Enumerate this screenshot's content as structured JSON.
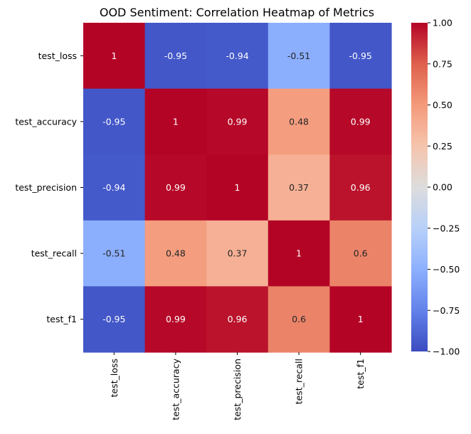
{
  "chart_data": {
    "type": "heatmap",
    "title": "OOD Sentiment: Correlation Heatmap of Metrics",
    "rows": [
      "test_loss",
      "test_accuracy",
      "test_precision",
      "test_recall",
      "test_f1"
    ],
    "columns": [
      "test_loss",
      "test_accuracy",
      "test_precision",
      "test_recall",
      "test_f1"
    ],
    "values": [
      [
        1,
        -0.95,
        -0.94,
        -0.51,
        -0.95
      ],
      [
        -0.95,
        1,
        0.99,
        0.48,
        0.99
      ],
      [
        -0.94,
        0.99,
        1,
        0.37,
        0.96
      ],
      [
        -0.51,
        0.48,
        0.37,
        1,
        0.6
      ],
      [
        -0.95,
        0.99,
        0.96,
        0.6,
        1
      ]
    ],
    "cell_labels": [
      [
        "1",
        "-0.95",
        "-0.94",
        "-0.51",
        "-0.95"
      ],
      [
        "-0.95",
        "1",
        "0.99",
        "0.48",
        "0.99"
      ],
      [
        "-0.94",
        "0.99",
        "1",
        "0.37",
        "0.96"
      ],
      [
        "-0.51",
        "0.48",
        "0.37",
        "1",
        "0.6"
      ],
      [
        "-0.95",
        "0.99",
        "0.96",
        "0.6",
        "1"
      ]
    ],
    "colormap": "coolwarm",
    "vmin": -1,
    "vmax": 1,
    "colorbar_ticks": [
      1.0,
      0.75,
      0.5,
      0.25,
      0.0,
      -0.25,
      -0.5,
      -0.75,
      -1.0
    ],
    "colorbar_tick_labels": [
      "1.00",
      "0.75",
      "0.50",
      "0.25",
      "0.00",
      "−0.25",
      "−0.50",
      "−0.75",
      "−1.00"
    ],
    "colors": {
      "low": "#3b4cc0",
      "mid": "#dddddd",
      "high": "#b40426"
    }
  }
}
